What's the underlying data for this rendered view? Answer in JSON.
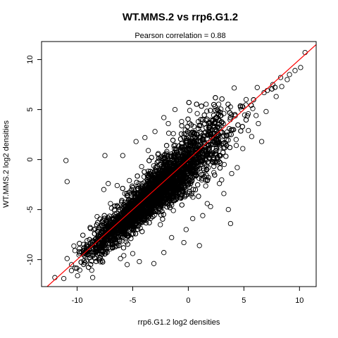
{
  "chart_data": {
    "type": "scatter",
    "title": "WT.MMS.2 vs rrp6.G1.2",
    "subtitle": "Pearson correlation =  0.88",
    "xlabel": "rrp6.G1.2 log2 densities",
    "ylabel": "WT.MMS.2 log2 densities",
    "xlim": [
      -13.2,
      11.5
    ],
    "ylim": [
      -12.7,
      11.8
    ],
    "x_ticks": [
      -10,
      -5,
      0,
      5,
      10
    ],
    "y_ticks": [
      -10,
      -5,
      0,
      5,
      10
    ],
    "point_style": "open-circle",
    "point_color": "#000000",
    "reference_line": {
      "slope": 1,
      "intercept": 0,
      "color": "#ff0000"
    },
    "grid": false,
    "legend": "none",
    "points": [
      [
        -11.0,
        -0.1
      ],
      [
        -10.9,
        -2.2
      ],
      [
        -7.5,
        0.4
      ],
      [
        -12.0,
        -11.8
      ],
      [
        -11.2,
        -11.9
      ],
      [
        -10.5,
        -10.5
      ],
      [
        -10.9,
        -9.9
      ],
      [
        -10.2,
        -9.1
      ],
      [
        -8.6,
        -11.8
      ],
      [
        -9.8,
        -8.9
      ],
      [
        10.5,
        10.7
      ],
      [
        10.1,
        9.2
      ],
      [
        9.1,
        8.5
      ],
      [
        8.3,
        8.2
      ],
      [
        7.6,
        7.5
      ],
      [
        7.1,
        6.9
      ],
      [
        6.2,
        7.2
      ],
      [
        5.8,
        5.1
      ],
      [
        6.1,
        4.4
      ],
      [
        5.2,
        6.0
      ],
      [
        -4.4,
        -10.2
      ],
      [
        -3.1,
        -10.4
      ],
      [
        -5.5,
        -10.5
      ],
      [
        -6.1,
        -9.9
      ],
      [
        -2.2,
        -9.3
      ],
      [
        -0.4,
        -8.3
      ],
      [
        1.0,
        -8.6
      ],
      [
        3.8,
        -6.4
      ],
      [
        3.6,
        -5.0
      ],
      [
        3.2,
        -3.4
      ],
      [
        4.4,
        -0.8
      ],
      [
        5.4,
        2.9
      ],
      [
        6.6,
        1.8
      ],
      [
        2.3,
        -1.3
      ],
      [
        1.7,
        -4.4
      ],
      [
        -7.2,
        -2.4
      ],
      [
        -7.6,
        -3.0
      ],
      [
        -8.8,
        -6.9
      ],
      [
        -9.1,
        -8.1
      ],
      [
        -9.6,
        -9.2
      ],
      [
        -5.9,
        0.4
      ],
      [
        -4.7,
        1.8
      ],
      [
        -3.9,
        2.2
      ],
      [
        -3.0,
        2.8
      ],
      [
        -2.2,
        4.2
      ],
      [
        -1.8,
        3.6
      ],
      [
        -0.6,
        3.8
      ],
      [
        -1.2,
        5.0
      ],
      [
        0.8,
        4.6
      ],
      [
        2.4,
        5.3
      ],
      [
        -2.7,
        0.6
      ],
      [
        -6.4,
        -2.6
      ],
      [
        -7.0,
        -4.4
      ],
      [
        -8.2,
        -5.7
      ],
      [
        -7.6,
        -6.4
      ],
      [
        -5.0,
        -9.4
      ],
      [
        -5.8,
        -9.6
      ],
      [
        -6.9,
        -8.3
      ],
      [
        -1.5,
        -7.8
      ],
      [
        -0.2,
        -7.0
      ],
      [
        0.4,
        -5.9
      ],
      [
        1.3,
        -5.6
      ],
      [
        2.0,
        -4.7
      ],
      [
        2.8,
        -2.4
      ],
      [
        3.9,
        -1.4
      ],
      [
        4.9,
        1.1
      ],
      [
        4.3,
        2.0
      ],
      [
        5.7,
        2.3
      ],
      [
        6.3,
        3.6
      ],
      [
        7.0,
        4.8
      ],
      [
        7.9,
        6.3
      ],
      [
        8.4,
        7.3
      ],
      [
        9.6,
        8.9
      ],
      [
        8.9,
        8.0
      ],
      [
        3.2,
        4.6
      ],
      [
        1.6,
        3.9
      ],
      [
        -0.4,
        2.2
      ],
      [
        -3.6,
        0.9
      ],
      [
        -4.2,
        -0.7
      ],
      [
        -5.3,
        -2.1
      ]
    ]
  }
}
